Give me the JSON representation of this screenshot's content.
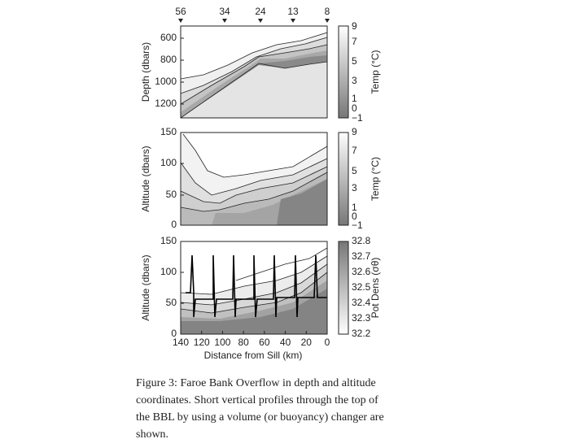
{
  "figure": {
    "top_axis": {
      "ticks": [
        "56",
        "34",
        "24",
        "13",
        "8"
      ]
    },
    "panels": [
      {
        "y_label": "Depth (dbars)",
        "yticks": [
          "600",
          "800",
          "1000",
          "1200"
        ],
        "colorbar_label": "Temp (°C)",
        "colorbar_ticks": [
          "9",
          "7",
          "5",
          "3",
          "1",
          "0",
          "−1"
        ]
      },
      {
        "y_label": "Altitude (dbars)",
        "yticks": [
          "150",
          "100",
          "50",
          "0"
        ],
        "colorbar_label": "Temp (°C)",
        "colorbar_ticks": [
          "9",
          "7",
          "5",
          "3",
          "1",
          "0",
          "−1"
        ]
      },
      {
        "y_label": "Altitude (dbars)",
        "yticks": [
          "150",
          "100",
          "50",
          "0"
        ],
        "colorbar_label": "Pot Dens (σθ)",
        "colorbar_ticks": [
          "32.8",
          "32.7",
          "32.6",
          "32.5",
          "32.4",
          "32.3",
          "32.2"
        ]
      }
    ],
    "x_label": "Distance from Sill (km)",
    "xticks": [
      "140",
      "120",
      "100",
      "80",
      "60",
      "40",
      "20",
      "0"
    ]
  },
  "caption": {
    "lines": [
      "Figure 3:  Faroe Bank Overflow in depth and altitude",
      "coordinates.  Short vertical profiles through the top of",
      "the BBL by using a volume (or buoyancy) changer are",
      "shown."
    ]
  }
}
